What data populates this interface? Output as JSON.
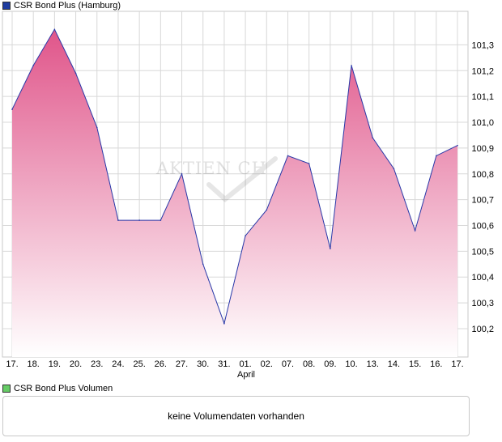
{
  "chart_legend": {
    "label": "CSR Bond Plus (Hamburg)",
    "color": "#1f3da0"
  },
  "volume_legend": {
    "label": "CSR Bond Plus Volumen",
    "color": "#66cc66"
  },
  "volume_panel": {
    "message": "keine Volumendaten vorhanden"
  },
  "watermark": {
    "text": "AKTIEN CH"
  },
  "month_label": "April",
  "colors": {
    "line": "#2838a8",
    "fill_top": "#e0558a",
    "fill_bottom": "#ffffff",
    "grid": "#d8d8d8",
    "frame": "#c8c8c8"
  },
  "chart_data": {
    "type": "area",
    "title": "CSR Bond Plus (Hamburg)",
    "xlabel": "April",
    "ylabel": "",
    "categories": [
      "17.",
      "18.",
      "19.",
      "20.",
      "23.",
      "24.",
      "25.",
      "26.",
      "27.",
      "30.",
      "31.",
      "01.",
      "02.",
      "07.",
      "08.",
      "09.",
      "10.",
      "13.",
      "14.",
      "15.",
      "16.",
      "17."
    ],
    "values": [
      101.05,
      101.22,
      101.36,
      101.19,
      100.98,
      100.62,
      100.62,
      100.62,
      100.8,
      100.45,
      100.22,
      100.56,
      100.66,
      100.87,
      100.84,
      100.51,
      101.22,
      100.94,
      100.82,
      100.58,
      100.87,
      100.91
    ],
    "yticks": [
      "100,2",
      "100,3",
      "100,4",
      "100,5",
      "100,6",
      "100,7",
      "100,8",
      "100,9",
      "101,0",
      "101,1",
      "101,2",
      "101,3"
    ],
    "ytick_values": [
      100.2,
      100.3,
      100.4,
      100.5,
      100.6,
      100.7,
      100.8,
      100.9,
      101.0,
      101.1,
      101.2,
      101.3
    ],
    "ylim": [
      100.09,
      101.43
    ],
    "grid": true,
    "legend": "top-left"
  }
}
